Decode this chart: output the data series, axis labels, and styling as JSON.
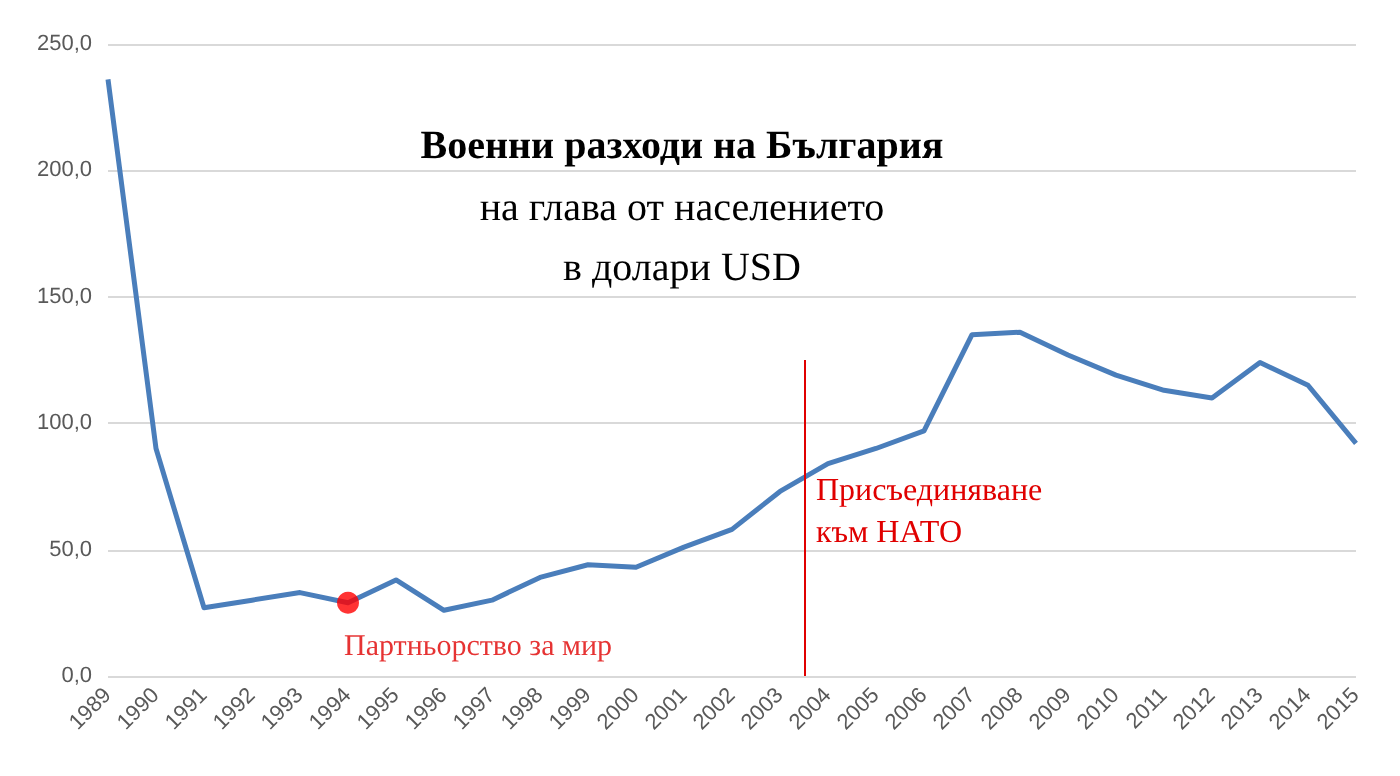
{
  "chart_data": {
    "type": "line",
    "title": "Военни разходи на България",
    "subtitle": "на глава от населението\nв долари USD",
    "x": [
      1989,
      1990,
      1991,
      1992,
      1993,
      1994,
      1995,
      1996,
      1997,
      1998,
      1999,
      2000,
      2001,
      2002,
      2003,
      2004,
      2005,
      2006,
      2007,
      2008,
      2009,
      2010,
      2011,
      2012,
      2013,
      2014,
      2015
    ],
    "series": [
      {
        "color": "#4a7ebb",
        "values": [
          236,
          90,
          27,
          30,
          33,
          29,
          38,
          26,
          30,
          39,
          44,
          43,
          51,
          58,
          73,
          84,
          90,
          97,
          135,
          136,
          127,
          119,
          113,
          110,
          124,
          115,
          92
        ]
      }
    ],
    "xlim": [
      1989,
      2015
    ],
    "xticks": [
      1989,
      1990,
      1991,
      1992,
      1993,
      1994,
      1995,
      1996,
      1997,
      1998,
      1999,
      2000,
      2001,
      2002,
      2003,
      2004,
      2005,
      2006,
      2007,
      2008,
      2009,
      2010,
      2011,
      2012,
      2013,
      2014,
      2015
    ],
    "ylim": [
      0,
      250
    ],
    "yticks": [
      {
        "value": 0,
        "label": "0,0"
      },
      {
        "value": 50,
        "label": "50,0"
      },
      {
        "value": 100,
        "label": "100,0"
      },
      {
        "value": 150,
        "label": "150,0"
      },
      {
        "value": 200,
        "label": "200,0"
      },
      {
        "value": 250,
        "label": "250,0"
      }
    ],
    "grid": "y",
    "marker": "none",
    "line_style": "solid",
    "ref_lines": [
      {
        "axis": "x",
        "value": 2003.5,
        "label": "Присъединяване\nкъм НАТО",
        "color": "#e00000"
      }
    ],
    "annotations": [
      {
        "text": "Партньорство за мир",
        "x": 1994,
        "y": 29
      }
    ]
  }
}
